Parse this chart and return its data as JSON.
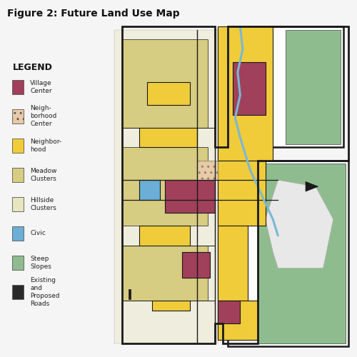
{
  "title": "Figure 2: Future Land Use Map",
  "title_fontsize": 10,
  "title_fontweight": "bold",
  "bg_color": "#f5f5f5",
  "sidebar_color": "#3d6b55",
  "legend_bg": "#ffffff",
  "legend_title": "LEGEND",
  "legend_items": [
    {
      "label": "Village\nCenter",
      "color": "#a0405a",
      "type": "patch"
    },
    {
      "label": "Neigh-\nborhood\nCenter",
      "color": "#e8c9a8",
      "type": "hatch",
      "hatch": ".."
    },
    {
      "label": "Neighbor-\nhood",
      "color": "#f0cc3a",
      "type": "patch"
    },
    {
      "label": "Meadow\nClusters",
      "color": "#d6cc82",
      "type": "patch"
    },
    {
      "label": "Hillside\nClusters",
      "color": "#e8e5c0",
      "type": "patch"
    },
    {
      "label": "Civic",
      "color": "#6baed6",
      "type": "patch"
    },
    {
      "label": "Steep\nSlopes",
      "color": "#8fbc8f",
      "type": "patch"
    },
    {
      "label": "Existing\nand\nProposed\nRoads",
      "color": "#2a2a2a",
      "type": "road"
    }
  ],
  "map_bg": "#dde4ec",
  "village_color": "#a0405a",
  "nbhd_ctr_color": "#e8c9a8",
  "nbhd_color": "#f0cc3a",
  "meadow_color": "#d6cc82",
  "hillside_color": "#e8e5c0",
  "civic_color": "#6baed6",
  "steep_color": "#8fbc8f",
  "road_color": "#1a1a1a",
  "river_color": "#7ab8d4"
}
